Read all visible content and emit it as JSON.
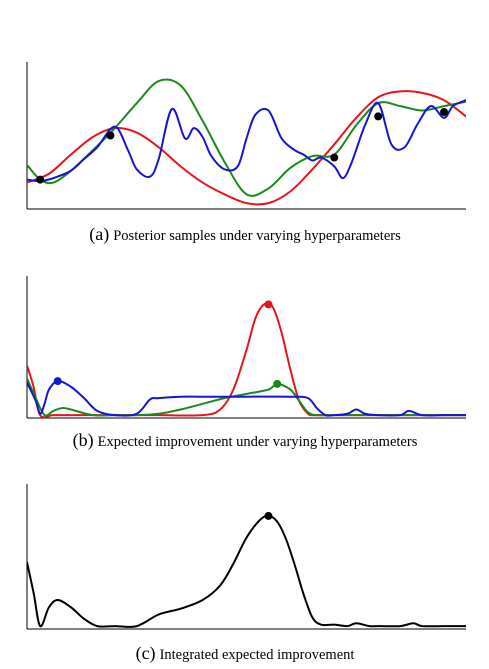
{
  "chart_data": [
    {
      "type": "line",
      "caption_letter": "(a)",
      "caption_text": "Posterior samples under varying hyperparameters",
      "x_range": [
        0,
        1
      ],
      "y_range": [
        0,
        1
      ],
      "colors": {
        "red": "#e8141b",
        "green": "#1a8a1a",
        "blue": "#1515d4",
        "black": "#000000"
      },
      "series": [
        {
          "color": "red",
          "x": [
            0.0,
            0.05,
            0.1,
            0.15,
            0.2,
            0.25,
            0.3,
            0.35,
            0.4,
            0.45,
            0.5,
            0.55,
            0.6,
            0.65,
            0.7,
            0.75,
            0.8,
            0.85,
            0.9,
            0.95,
            1.0
          ],
          "y": [
            0.18,
            0.24,
            0.37,
            0.49,
            0.55,
            0.52,
            0.42,
            0.29,
            0.18,
            0.1,
            0.04,
            0.04,
            0.12,
            0.27,
            0.44,
            0.62,
            0.76,
            0.8,
            0.79,
            0.74,
            0.63
          ]
        },
        {
          "color": "green",
          "x": [
            0.0,
            0.03,
            0.06,
            0.1,
            0.15,
            0.2,
            0.25,
            0.3,
            0.35,
            0.4,
            0.45,
            0.5,
            0.55,
            0.6,
            0.65,
            0.7,
            0.75,
            0.8,
            0.85,
            0.9,
            0.95,
            1.0
          ],
          "y": [
            0.3,
            0.2,
            0.18,
            0.26,
            0.4,
            0.55,
            0.72,
            0.87,
            0.84,
            0.6,
            0.32,
            0.1,
            0.14,
            0.28,
            0.36,
            0.37,
            0.57,
            0.72,
            0.7,
            0.67,
            0.7,
            0.73
          ]
        },
        {
          "color": "blue",
          "x": [
            0.0,
            0.03,
            0.06,
            0.1,
            0.13,
            0.16,
            0.2,
            0.23,
            0.25,
            0.28,
            0.3,
            0.33,
            0.36,
            0.38,
            0.4,
            0.42,
            0.45,
            0.48,
            0.5,
            0.52,
            0.55,
            0.58,
            0.61,
            0.63,
            0.65,
            0.67,
            0.7,
            0.72,
            0.74,
            0.77,
            0.8,
            0.83,
            0.86,
            0.89,
            0.92,
            0.95,
            0.97,
            1.0
          ],
          "y": [
            0.2,
            0.19,
            0.21,
            0.26,
            0.34,
            0.42,
            0.56,
            0.4,
            0.27,
            0.22,
            0.34,
            0.68,
            0.48,
            0.55,
            0.49,
            0.36,
            0.27,
            0.29,
            0.48,
            0.64,
            0.67,
            0.48,
            0.4,
            0.37,
            0.33,
            0.35,
            0.29,
            0.21,
            0.32,
            0.57,
            0.72,
            0.44,
            0.42,
            0.58,
            0.7,
            0.62,
            0.7,
            0.74
          ]
        }
      ],
      "observations": {
        "x": [
          0.03,
          0.19,
          0.7,
          0.8,
          0.95
        ],
        "y": [
          0.2,
          0.5,
          0.35,
          0.63,
          0.66
        ]
      }
    },
    {
      "type": "line",
      "caption_letter": "(b)",
      "caption_text": "Expected improvement under varying hyperparameters",
      "x_range": [
        0,
        1
      ],
      "y_range": [
        0,
        1
      ],
      "series": [
        {
          "color": "red",
          "x": [
            0.0,
            0.015,
            0.03,
            0.06,
            0.1,
            0.2,
            0.3,
            0.4,
            0.44,
            0.47,
            0.5,
            0.52,
            0.54,
            0.56,
            0.58,
            0.6,
            0.62,
            0.64,
            0.65,
            0.66,
            0.7,
            0.8,
            0.9,
            1.0
          ],
          "y": [
            0.37,
            0.22,
            0.02,
            0.02,
            0.02,
            0.02,
            0.02,
            0.02,
            0.06,
            0.2,
            0.48,
            0.7,
            0.8,
            0.78,
            0.6,
            0.34,
            0.12,
            0.03,
            0.02,
            0.02,
            0.02,
            0.02,
            0.02,
            0.02
          ]
        },
        {
          "color": "green",
          "x": [
            0.0,
            0.02,
            0.04,
            0.06,
            0.08,
            0.1,
            0.15,
            0.2,
            0.25,
            0.3,
            0.35,
            0.4,
            0.45,
            0.5,
            0.55,
            0.57,
            0.6,
            0.62,
            0.64,
            0.66,
            0.7,
            0.8,
            0.9,
            1.0
          ],
          "y": [
            0.28,
            0.14,
            0.02,
            0.05,
            0.07,
            0.06,
            0.02,
            0.02,
            0.02,
            0.03,
            0.06,
            0.1,
            0.14,
            0.17,
            0.2,
            0.24,
            0.2,
            0.12,
            0.04,
            0.02,
            0.02,
            0.02,
            0.02,
            0.02
          ]
        },
        {
          "color": "blue",
          "x": [
            0.0,
            0.02,
            0.03,
            0.04,
            0.05,
            0.07,
            0.1,
            0.13,
            0.16,
            0.2,
            0.25,
            0.28,
            0.3,
            0.35,
            0.4,
            0.5,
            0.6,
            0.64,
            0.66,
            0.68,
            0.7,
            0.73,
            0.75,
            0.77,
            0.8,
            0.85,
            0.87,
            0.9,
            0.95,
            1.0
          ],
          "y": [
            0.25,
            0.12,
            0.03,
            0.1,
            0.2,
            0.26,
            0.22,
            0.14,
            0.05,
            0.02,
            0.03,
            0.13,
            0.14,
            0.15,
            0.15,
            0.15,
            0.15,
            0.14,
            0.07,
            0.02,
            0.02,
            0.03,
            0.06,
            0.03,
            0.02,
            0.02,
            0.05,
            0.02,
            0.02,
            0.02
          ]
        }
      ],
      "maxima": [
        {
          "color": "red",
          "x": 0.55,
          "y": 0.8
        },
        {
          "color": "green",
          "x": 0.57,
          "y": 0.24
        },
        {
          "color": "blue",
          "x": 0.07,
          "y": 0.26
        }
      ]
    },
    {
      "type": "line",
      "caption_letter": "(c)",
      "caption_text": "Integrated expected improvement",
      "x_range": [
        0,
        1
      ],
      "y_range": [
        0,
        1
      ],
      "series": [
        {
          "color": "black",
          "x": [
            0.0,
            0.015,
            0.03,
            0.05,
            0.07,
            0.1,
            0.13,
            0.16,
            0.2,
            0.25,
            0.3,
            0.35,
            0.4,
            0.44,
            0.47,
            0.5,
            0.53,
            0.55,
            0.57,
            0.59,
            0.61,
            0.63,
            0.65,
            0.67,
            0.7,
            0.73,
            0.75,
            0.78,
            0.8,
            0.85,
            0.88,
            0.9,
            0.95,
            1.0
          ],
          "y": [
            0.46,
            0.25,
            0.02,
            0.15,
            0.2,
            0.15,
            0.07,
            0.02,
            0.02,
            0.02,
            0.1,
            0.14,
            0.2,
            0.3,
            0.45,
            0.63,
            0.75,
            0.78,
            0.74,
            0.62,
            0.44,
            0.24,
            0.08,
            0.03,
            0.03,
            0.02,
            0.04,
            0.02,
            0.02,
            0.02,
            0.04,
            0.02,
            0.02,
            0.02
          ]
        }
      ],
      "maxima": [
        {
          "color": "black",
          "x": 0.55,
          "y": 0.78
        }
      ]
    }
  ]
}
